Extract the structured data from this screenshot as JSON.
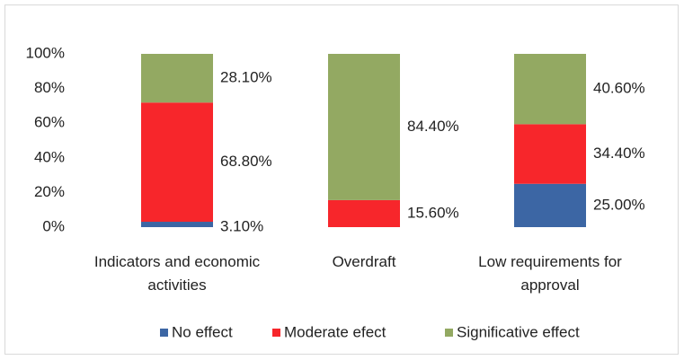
{
  "chart_data": {
    "type": "stacked_bar",
    "categories": [
      "Indicators and economic activities",
      "Overdraft",
      "Low requirements for approval"
    ],
    "series": [
      {
        "name": "No effect",
        "color": "#3c66a4",
        "values": [
          3.1,
          null,
          25.0
        ],
        "value_labels": [
          "3.10%",
          null,
          "25.00%"
        ]
      },
      {
        "name": "Moderate efect",
        "color": "#f7262b",
        "values": [
          68.8,
          15.6,
          34.4
        ],
        "value_labels": [
          "68.80%",
          "15.60%",
          "34.40%"
        ]
      },
      {
        "name": "Significative effect",
        "color": "#93a962",
        "values": [
          28.1,
          84.4,
          40.6
        ],
        "value_labels": [
          "28.10%",
          "84.40%",
          "40.60%"
        ]
      }
    ],
    "ylim": [
      0,
      100
    ],
    "yticks": [
      {
        "value": 0,
        "label": "0%"
      },
      {
        "value": 20,
        "label": "20%"
      },
      {
        "value": 40,
        "label": "40%"
      },
      {
        "value": 60,
        "label": "60%"
      },
      {
        "value": 80,
        "label": "80%"
      },
      {
        "value": 100,
        "label": "100%"
      }
    ],
    "grid": false,
    "legend": "bottom"
  }
}
